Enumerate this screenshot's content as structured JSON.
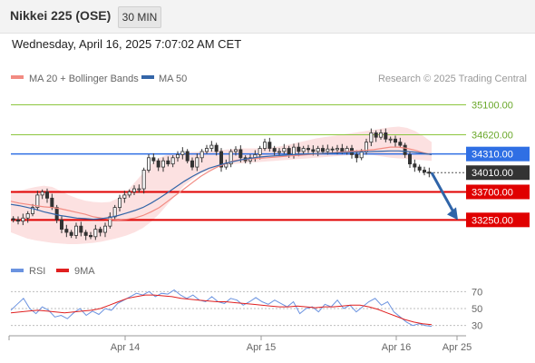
{
  "header": {
    "title": "Nikkei 225 (OSE)",
    "timeframe": "30 MIN"
  },
  "datetime": "Wednesday, April 16, 2025 7:07:02 AM CET",
  "legend": {
    "bb_label": "MA 20 + Bollinger Bands",
    "ma50_label": "MA 50",
    "credit": "Research © 2025 Trading Central"
  },
  "rsi_legend": {
    "rsi_label": "RSI",
    "ma9_label": "9MA"
  },
  "colors": {
    "bb": "#f28b82",
    "bb_fill": "#fcdede",
    "ma50": "#3466a8",
    "resistance": "#8cc63f",
    "pivot": "#2f6fe4",
    "support": "#e00000",
    "last": "#333333",
    "arrow": "#2f64a8",
    "rsi": "#6b93e0",
    "rsi_ma": "#e02020"
  },
  "chart_data": {
    "type": "candlestick",
    "ylim": [
      32700,
      35400
    ],
    "x_ticks": [
      "Apr 14",
      "Apr 15",
      "Apr 16",
      "Apr 25"
    ],
    "levels": [
      {
        "value": 35100,
        "label": "35100.00",
        "kind": "resistance"
      },
      {
        "value": 34620,
        "label": "34620.00",
        "kind": "resistance"
      },
      {
        "value": 34310,
        "label": "34310.00",
        "kind": "pivot"
      },
      {
        "value": 34010,
        "label": "34010.00",
        "kind": "last"
      },
      {
        "value": 33700,
        "label": "33700.00",
        "kind": "support"
      },
      {
        "value": 33250,
        "label": "33250.00",
        "kind": "support"
      }
    ],
    "close_path": [
      33250,
      33230,
      33280,
      33350,
      33450,
      33650,
      33700,
      33600,
      33450,
      33250,
      33100,
      33050,
      33000,
      33150,
      33050,
      33000,
      32980,
      33100,
      33050,
      33150,
      33300,
      33450,
      33600,
      33650,
      33700,
      33750,
      33750,
      34050,
      34250,
      34200,
      34100,
      34200,
      34150,
      34250,
      34300,
      34350,
      34200,
      34100,
      34250,
      34350,
      34400,
      34450,
      34350,
      34100,
      34150,
      34350,
      34380,
      34250,
      34200,
      34250,
      34300,
      34400,
      34500,
      34400,
      34350,
      34350,
      34400,
      34300,
      34420,
      34350,
      34400,
      34380,
      34350,
      34400,
      34350,
      34390,
      34380,
      34400,
      34350,
      34400,
      34300,
      34250,
      34350,
      34500,
      34650,
      34580,
      34650,
      34550,
      34550,
      34500,
      34450,
      34300,
      34150,
      34100,
      34050,
      34020,
      34000
    ],
    "ma20": [
      33550,
      33520,
      33500,
      33480,
      33460,
      33450,
      33430,
      33400,
      33370,
      33340,
      33300,
      33280,
      33260,
      33250,
      33260,
      33280,
      33320,
      33380,
      33450,
      33550,
      33650,
      33750,
      33850,
      33950,
      34030,
      34100,
      34150,
      34200,
      34220,
      34230,
      34240,
      34250,
      34260,
      34270,
      34280,
      34290,
      34300,
      34310,
      34320,
      34330,
      34340,
      34350,
      34360,
      34370,
      34380,
      34400,
      34420,
      34420,
      34400,
      34370,
      34330,
      34300
    ],
    "bb_upper": [
      33700,
      33720,
      33750,
      33780,
      33800,
      33780,
      33720,
      33650,
      33600,
      33560,
      33540,
      33530,
      33540,
      33600,
      33700,
      33850,
      34000,
      34150,
      34250,
      34300,
      34320,
      34330,
      34340,
      34350,
      34360,
      34370,
      34380,
      34390,
      34400,
      34400,
      34400,
      34410,
      34420,
      34440,
      34470,
      34500,
      34530,
      34560,
      34580,
      34600,
      34620,
      34640,
      34660,
      34680,
      34700,
      34720,
      34740,
      34750,
      34730,
      34680,
      34600,
      34500
    ],
    "bb_lower": [
      33050,
      33000,
      32950,
      32920,
      32900,
      32880,
      32870,
      32860,
      32860,
      32870,
      32880,
      32900,
      32930,
      32960,
      33000,
      33050,
      33120,
      33220,
      33350,
      33500,
      33650,
      33800,
      33900,
      34000,
      34050,
      34100,
      34130,
      34150,
      34160,
      34170,
      34180,
      34190,
      34200,
      34210,
      34220,
      34230,
      34240,
      34250,
      34260,
      34270,
      34280,
      34290,
      34300,
      34300,
      34290,
      34270,
      34250,
      34240,
      34230,
      34220,
      34210,
      34200
    ],
    "ma50": [
      33500,
      33480,
      33450,
      33420,
      33380,
      33350,
      33320,
      33300,
      33280,
      33270,
      33260,
      33270,
      33290,
      33320,
      33360,
      33400,
      33450,
      33520,
      33600,
      33690,
      33780,
      33870,
      33950,
      34020,
      34080,
      34120,
      34160,
      34190,
      34220,
      34240,
      34260,
      34270,
      34280,
      34290,
      34300,
      34305,
      34310,
      34315,
      34320,
      34325,
      34330,
      34335,
      34340,
      34345,
      34350,
      34355,
      34360,
      34360,
      34350,
      34340,
      34320,
      34300
    ],
    "projection": {
      "from": 34010,
      "to": 33250
    },
    "rsi": {
      "ticks": [
        70,
        50,
        30
      ],
      "ylim": [
        20,
        80
      ],
      "rsi_values": [
        48,
        55,
        62,
        50,
        44,
        52,
        48,
        40,
        42,
        38,
        45,
        50,
        42,
        47,
        43,
        50,
        48,
        56,
        60,
        64,
        68,
        66,
        70,
        64,
        68,
        67,
        72,
        66,
        62,
        66,
        60,
        58,
        64,
        58,
        56,
        62,
        60,
        54,
        58,
        63,
        58,
        55,
        60,
        56,
        52,
        58,
        44,
        50,
        52,
        46,
        55,
        52,
        60,
        50,
        54,
        46,
        52,
        58,
        62,
        54,
        58,
        46,
        40,
        34,
        30,
        32,
        30,
        29
      ],
      "ma9_values": [
        45,
        46,
        47,
        48,
        47,
        46,
        45,
        46,
        47,
        48,
        50,
        54,
        58,
        62,
        64,
        66,
        66,
        65,
        64,
        62,
        61,
        60,
        59,
        58,
        58,
        57,
        56,
        55,
        54,
        53,
        52,
        52,
        53,
        52,
        51,
        52,
        52,
        53,
        54,
        54,
        52,
        49,
        45,
        41,
        37,
        34,
        32,
        31
      ]
    }
  }
}
